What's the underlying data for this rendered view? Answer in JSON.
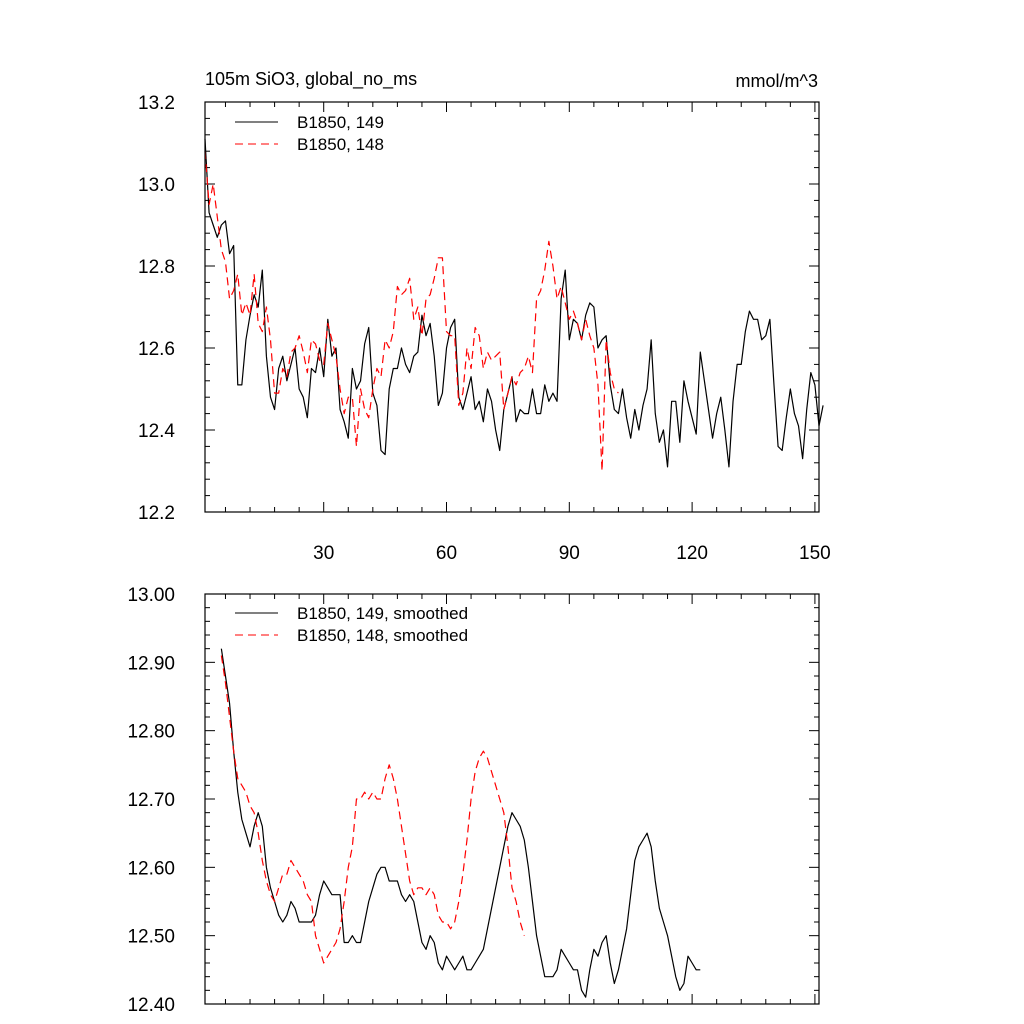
{
  "charts": [
    {
      "type": "line",
      "title": "105m SiO3, global_no_ms",
      "units": "mmol/m^3",
      "x_range": [
        1,
        151
      ],
      "y_range": [
        12.2,
        13.2
      ],
      "x_ticks": [
        30,
        60,
        90,
        120,
        150
      ],
      "x_tick_labels": [
        "30",
        "60",
        "90",
        "120",
        "150"
      ],
      "y_ticks": [
        12.2,
        12.4,
        12.6,
        12.8,
        13.0,
        13.2
      ],
      "y_tick_labels": [
        "12.2",
        "12.4",
        "12.6",
        "12.8",
        "13.0",
        "13.2"
      ],
      "legend": {
        "position": "top-left",
        "entries": [
          "B1850, 149",
          "B1850, 148"
        ]
      },
      "series": [
        {
          "name": "B1850, 149",
          "color": "#000000",
          "dash": "solid",
          "x_start": 1,
          "values": [
            13.11,
            12.93,
            12.9,
            12.87,
            12.9,
            12.91,
            12.83,
            12.85,
            12.51,
            12.51,
            12.62,
            12.68,
            12.73,
            12.7,
            12.79,
            12.58,
            12.48,
            12.45,
            12.55,
            12.58,
            12.52,
            12.56,
            12.6,
            12.5,
            12.48,
            12.43,
            12.55,
            12.54,
            12.6,
            12.53,
            12.67,
            12.58,
            12.6,
            12.45,
            12.42,
            12.38,
            12.55,
            12.5,
            12.52,
            12.61,
            12.65,
            12.49,
            12.46,
            12.35,
            12.34,
            12.5,
            12.55,
            12.55,
            12.6,
            12.56,
            12.54,
            12.58,
            12.59,
            12.68,
            12.63,
            12.66,
            12.58,
            12.46,
            12.49,
            12.6,
            12.65,
            12.67,
            12.48,
            12.45,
            12.49,
            12.53,
            12.45,
            12.47,
            12.42,
            12.5,
            12.47,
            12.4,
            12.35,
            12.45,
            12.49,
            12.53,
            12.42,
            12.45,
            12.44,
            12.44,
            12.5,
            12.44,
            12.44,
            12.51,
            12.47,
            12.49,
            12.47,
            12.72,
            12.79,
            12.62,
            12.67,
            12.66,
            12.62,
            12.68,
            12.71,
            12.7,
            12.6,
            12.62,
            12.63,
            12.51,
            12.45,
            12.44,
            12.5,
            12.43,
            12.38,
            12.45,
            12.4,
            12.46,
            12.5,
            12.62,
            12.44,
            12.37,
            12.4,
            12.31,
            12.47,
            12.47,
            12.37,
            12.52,
            12.47,
            12.43,
            12.39,
            12.59,
            12.52,
            12.45,
            12.38,
            12.44,
            12.48,
            12.4,
            12.31,
            12.47,
            12.56,
            12.56,
            12.64,
            12.69,
            12.67,
            12.67,
            12.62,
            12.63,
            12.67,
            12.51,
            12.36,
            12.35,
            12.43,
            12.5,
            12.44,
            12.41,
            12.33,
            12.45,
            12.54,
            12.51,
            12.41,
            12.46
          ]
        },
        {
          "name": "B1850, 148",
          "color": "#ff0000",
          "dash": "dashed",
          "x_start": 1,
          "values": [
            13.08,
            12.95,
            13.0,
            12.92,
            12.84,
            12.81,
            12.72,
            12.74,
            12.78,
            12.68,
            12.71,
            12.68,
            12.78,
            12.66,
            12.64,
            12.7,
            12.62,
            12.49,
            12.49,
            12.55,
            12.53,
            12.59,
            12.6,
            12.63,
            12.59,
            12.54,
            12.62,
            12.61,
            12.57,
            12.56,
            12.66,
            12.62,
            12.58,
            12.5,
            12.44,
            12.48,
            12.48,
            12.36,
            12.5,
            12.45,
            12.43,
            12.5,
            12.55,
            12.53,
            12.62,
            12.6,
            12.64,
            12.75,
            12.73,
            12.74,
            12.77,
            12.67,
            12.7,
            12.63,
            12.72,
            12.73,
            12.77,
            12.82,
            12.82,
            12.64,
            12.63,
            12.63,
            12.46,
            12.49,
            12.6,
            12.55,
            12.65,
            12.63,
            12.55,
            12.59,
            12.57,
            12.58,
            12.59,
            12.45,
            12.49,
            12.53,
            12.51,
            12.54,
            12.55,
            12.58,
            12.54,
            12.72,
            12.74,
            12.79,
            12.86,
            12.8,
            12.72,
            12.75,
            12.71,
            12.67,
            12.69,
            12.66,
            12.62,
            12.67,
            12.63,
            12.6,
            12.51,
            12.3,
            12.62,
            12.54,
            12.5,
            12.49
          ]
        }
      ]
    },
    {
      "type": "line",
      "title": "",
      "units": "",
      "x_range": [
        1,
        151
      ],
      "y_range": [
        12.4,
        13.0
      ],
      "x_ticks": [
        30,
        60,
        90,
        120,
        150
      ],
      "x_tick_labels": [],
      "y_ticks": [
        12.4,
        12.5,
        12.6,
        12.7,
        12.8,
        12.9,
        13.0
      ],
      "y_tick_labels": [
        "12.40",
        "12.50",
        "12.60",
        "12.70",
        "12.80",
        "12.90",
        "13.00"
      ],
      "legend": {
        "position": "top-left",
        "entries": [
          "B1850, 149, smoothed",
          "B1850, 148, smoothed"
        ]
      },
      "series": [
        {
          "name": "B1850, 149, smoothed",
          "color": "#000000",
          "dash": "solid",
          "x_start": 5,
          "values": [
            12.92,
            12.88,
            12.84,
            12.77,
            12.71,
            12.67,
            12.65,
            12.63,
            12.66,
            12.68,
            12.66,
            12.6,
            12.57,
            12.55,
            12.53,
            12.52,
            12.53,
            12.55,
            12.54,
            12.52,
            12.52,
            12.52,
            12.52,
            12.53,
            12.56,
            12.58,
            12.57,
            12.56,
            12.56,
            12.56,
            12.49,
            12.49,
            12.5,
            12.49,
            12.49,
            12.52,
            12.55,
            12.57,
            12.59,
            12.6,
            12.6,
            12.58,
            12.58,
            12.58,
            12.56,
            12.55,
            12.56,
            12.55,
            12.52,
            12.49,
            12.48,
            12.5,
            12.49,
            12.46,
            12.45,
            12.47,
            12.46,
            12.45,
            12.46,
            12.47,
            12.45,
            12.45,
            12.46,
            12.47,
            12.48,
            12.51,
            12.54,
            12.57,
            12.6,
            12.63,
            12.66,
            12.68,
            12.67,
            12.66,
            12.64,
            12.6,
            12.55,
            12.5,
            12.47,
            12.44,
            12.44,
            12.44,
            12.45,
            12.48,
            12.47,
            12.46,
            12.45,
            12.45,
            12.42,
            12.41,
            12.45,
            12.48,
            12.47,
            12.49,
            12.5,
            12.46,
            12.43,
            12.45,
            12.48,
            12.51,
            12.56,
            12.61,
            12.63,
            12.64,
            12.65,
            12.63,
            12.58,
            12.54,
            12.52,
            12.5,
            12.47,
            12.44,
            12.42,
            12.43,
            12.47,
            12.46,
            12.45,
            12.45
          ]
        },
        {
          "name": "B1850, 148, smoothed",
          "color": "#ff0000",
          "dash": "dashed",
          "x_start": 5,
          "values": [
            12.91,
            12.87,
            12.82,
            12.77,
            12.73,
            12.72,
            12.71,
            12.69,
            12.68,
            12.65,
            12.61,
            12.58,
            12.56,
            12.55,
            12.57,
            12.59,
            12.59,
            12.61,
            12.6,
            12.59,
            12.58,
            12.56,
            12.55,
            12.5,
            12.48,
            12.46,
            12.47,
            12.48,
            12.49,
            12.51,
            12.55,
            12.6,
            12.63,
            12.7,
            12.7,
            12.71,
            12.7,
            12.71,
            12.7,
            12.7,
            12.73,
            12.75,
            12.73,
            12.7,
            12.66,
            12.62,
            12.58,
            12.56,
            12.57,
            12.57,
            12.56,
            12.57,
            12.56,
            12.53,
            12.52,
            12.52,
            12.51,
            12.52,
            12.55,
            12.59,
            12.64,
            12.7,
            12.74,
            12.76,
            12.77,
            12.76,
            12.74,
            12.72,
            12.7,
            12.68,
            12.63,
            12.57,
            12.55,
            12.52,
            12.5
          ]
        }
      ]
    }
  ]
}
